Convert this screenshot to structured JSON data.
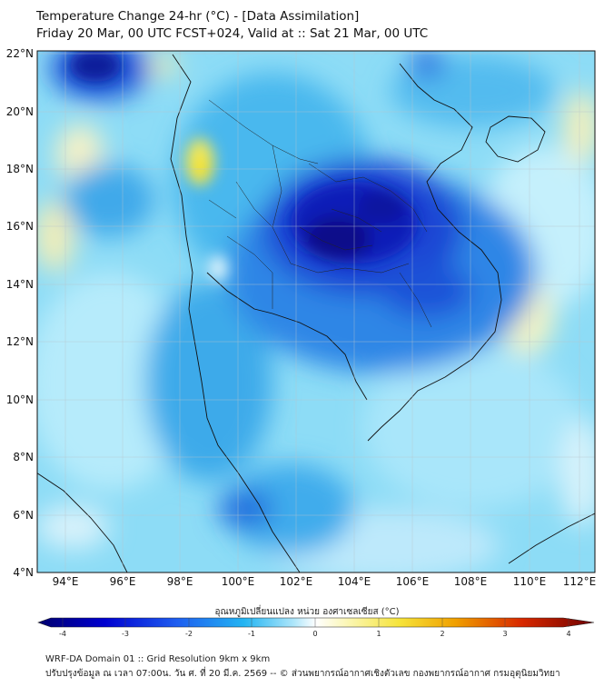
{
  "header": {
    "title_line1": "Temperature Change 24-hr (°C) - [Data Assimilation]",
    "title_line2": "Friday 20 Mar, 00 UTC FCST+024, Valid at :: Sat 21 Mar, 00 UTC"
  },
  "map": {
    "variable": "24-hr temperature change",
    "lon_labels": [
      "94°E",
      "96°E",
      "98°E",
      "100°E",
      "102°E",
      "104°E",
      "106°E",
      "108°E",
      "110°E",
      "112°E"
    ],
    "lat_labels": [
      "22°N",
      "20°N",
      "18°N",
      "16°N",
      "14°N",
      "12°N",
      "10°N",
      "8°N",
      "6°N",
      "4°N"
    ]
  },
  "colorbar": {
    "title": "อุณหภูมิเปลี่ยนแปลง หน่วย องศาเซลเซียส (°C)",
    "min": -4,
    "max": 4,
    "tick_labels": [
      "-4",
      "-3",
      "-2",
      "-1",
      "0",
      "1",
      "2",
      "3",
      "4"
    ]
  },
  "footer": {
    "line1": "WRF-DA Domain 01 :: Grid Resolution 9km x 9km",
    "line2": "ปรับปรุงข้อมูล ณ เวลา 07:00น. วัน ศ. ที่ 20 มี.ค. 2569 -- © ส่วนพยากรณ์อากาศเชิงตัวเลข กองพยากรณ์อากาศ กรมอุตุนิยมวิทยา"
  },
  "colors": {
    "very_cold": "#00007a",
    "cold": "#1a3ad8",
    "cool": "#2a9cf0",
    "slight_cool": "#5ccbf2",
    "neutral": "#e6f6ff",
    "warm": "#f5f08a",
    "hot": "#e8a000",
    "very_hot": "#7a0000"
  }
}
